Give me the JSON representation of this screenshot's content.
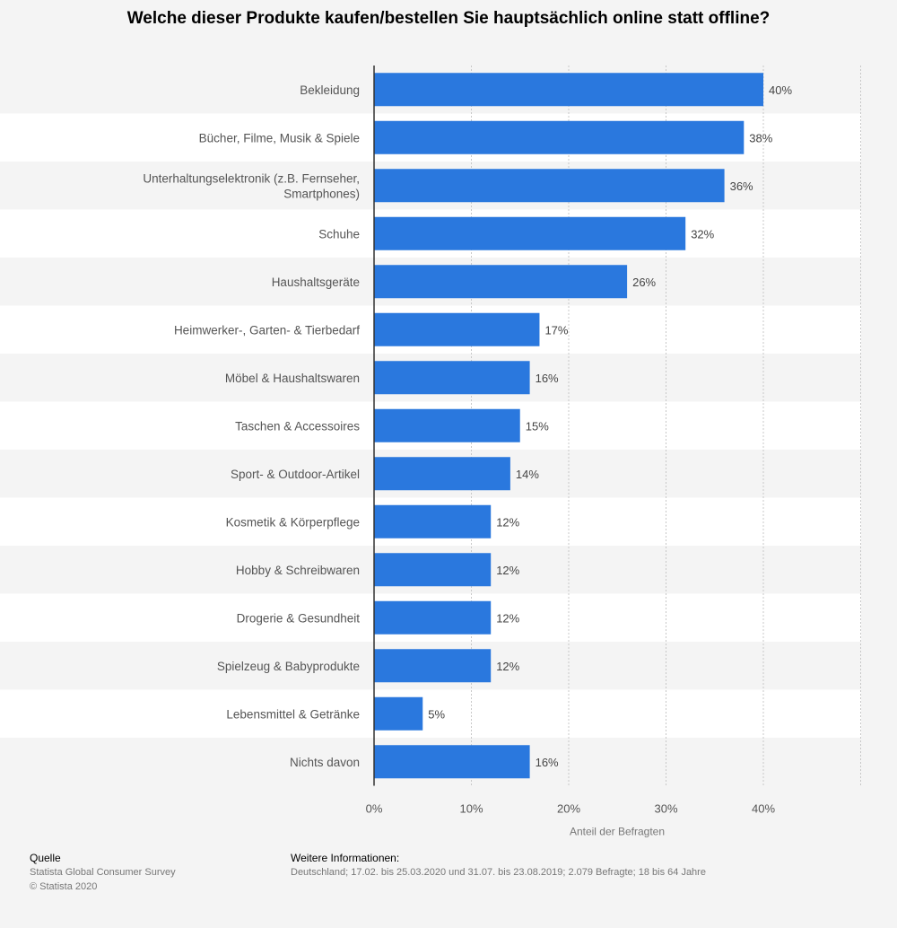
{
  "title": "Welche dieser Produkte kaufen/bestellen Sie hauptsächlich online statt offline?",
  "chart_data": {
    "type": "bar",
    "orientation": "horizontal",
    "categories": [
      "Bekleidung",
      "Bücher, Filme, Musik & Spiele",
      "Unterhaltungselektronik (z.B. Fernseher, Smartphones)",
      "Schuhe",
      "Haushaltsgeräte",
      "Heimwerker-, Garten- & Tierbedarf",
      "Möbel & Haushaltswaren",
      "Taschen & Accessoires",
      "Sport- & Outdoor-Artikel",
      "Kosmetik & Körperpflege",
      "Hobby & Schreibwaren",
      "Drogerie & Gesundheit",
      "Spielzeug & Babyprodukte",
      "Lebensmittel & Getränke",
      "Nichts davon"
    ],
    "values": [
      40,
      38,
      36,
      32,
      26,
      17,
      16,
      15,
      14,
      12,
      12,
      12,
      12,
      5,
      16
    ],
    "value_suffix": "%",
    "xlabel": "Anteil der Befragten",
    "ylabel": "",
    "xlim": [
      0,
      50
    ],
    "xticks": [
      "0%",
      "10%",
      "20%",
      "30%",
      "40%"
    ],
    "bar_color": "#2a78de",
    "grid": true
  },
  "footer": {
    "source_heading": "Quelle",
    "source_lines": [
      "Statista Global Consumer Survey",
      "© Statista 2020"
    ],
    "info_heading": "Weitere Informationen:",
    "info_text": "Deutschland; 17.02. bis 25.03.2020 und 31.07. bis 23.08.2019; 2.079 Befragte; 18 bis 64 Jahre"
  }
}
